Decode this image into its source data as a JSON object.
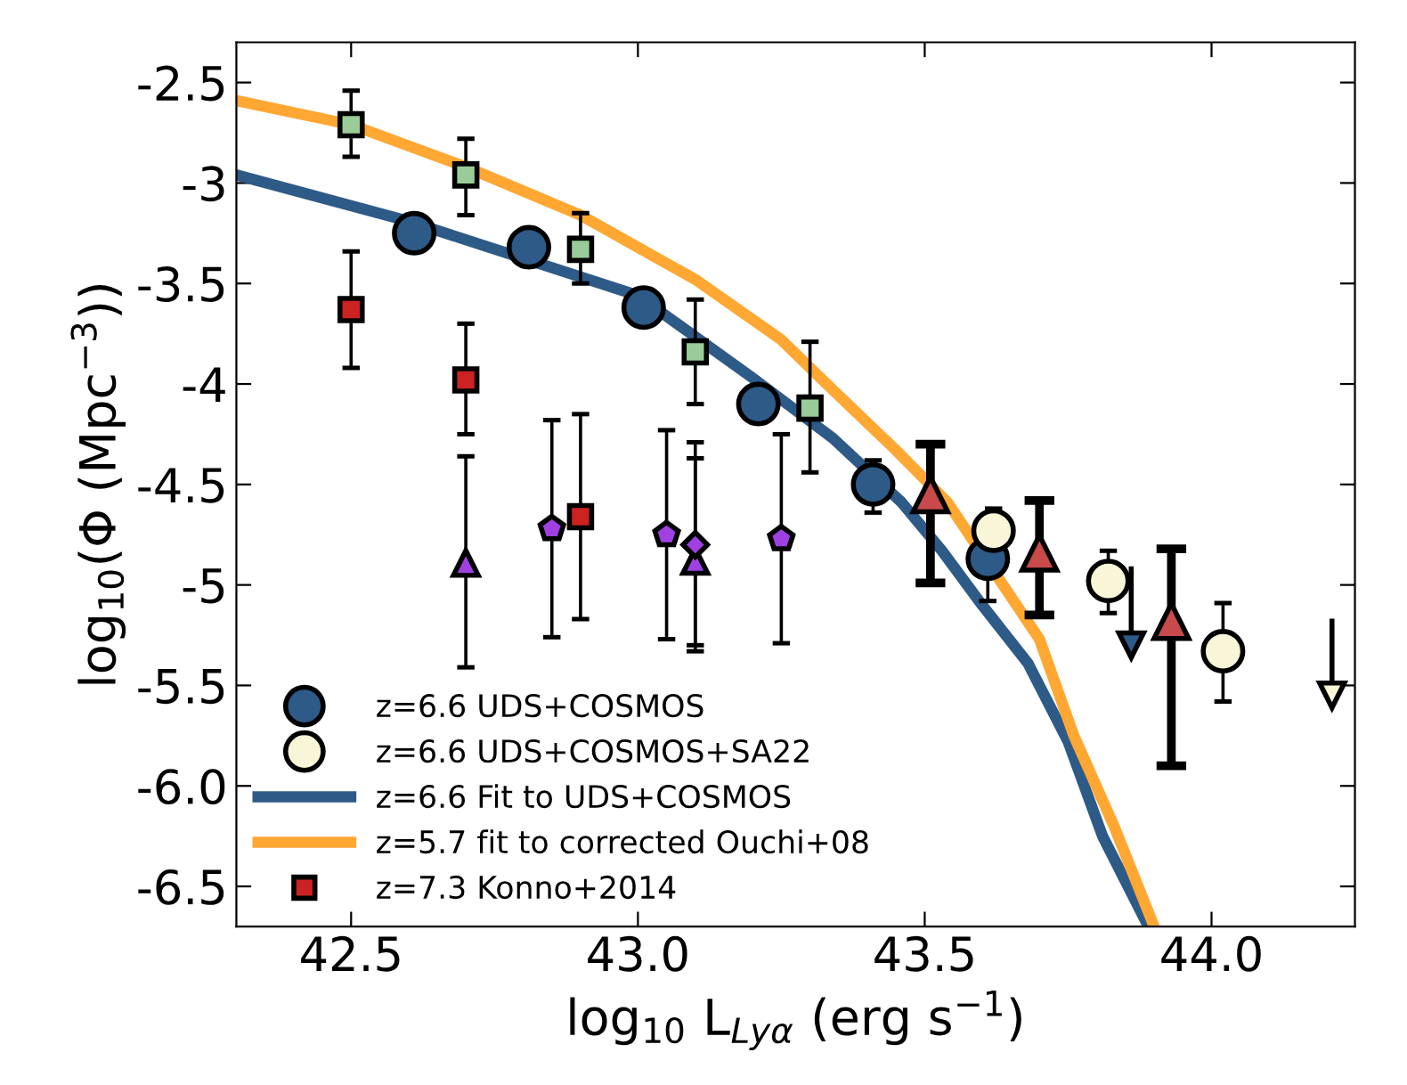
{
  "chart_data": {
    "type": "scatter",
    "xlabel": "log$_{10}$ L$_{Lyα}$ (erg s$^{−1}$)",
    "ylabel": "log$_{10}$(Φ (Mpc$^{−3}$))",
    "xlim": [
      42.3,
      44.25
    ],
    "xticks": [
      42.5,
      {
        "value": 43,
        "label": "43.0"
      },
      43.5,
      {
        "value": 44,
        "label": "44.0"
      }
    ],
    "ylim": [
      -6.7,
      -2.3
    ],
    "yticks": [
      -2.5,
      -3,
      -3.5,
      -4,
      -4.5,
      -5,
      -5.5,
      {
        "value": -6,
        "label": "-6.0"
      },
      -6.5
    ],
    "grid": false,
    "legend": "bottom left",
    "series": [
      {
        "name": "z=6.6 UDS+COSMOS",
        "marker": "circle",
        "color": "#2e5a87",
        "x": [
          42.61,
          42.81,
          43.01,
          43.21,
          43.41,
          43.61
        ],
        "values": [
          -3.25,
          -3.32,
          -3.62,
          -4.1,
          -4.5,
          -4.87
        ],
        "errors": [
          null,
          null,
          null,
          null,
          [
            -4.64,
            -4.38
          ],
          [
            -5.08,
            -4.87
          ]
        ]
      },
      {
        "name": "z=6.6 UDS+COSMOS+SA22",
        "marker": "circle",
        "color": "#f8f5d8",
        "x": [
          43.62,
          43.82,
          44.02
        ],
        "values": [
          -4.73,
          -4.98,
          -5.33
        ],
        "errors": [
          [
            -4.82,
            -4.62
          ],
          [
            -5.14,
            -4.83
          ],
          [
            -5.58,
            -5.09
          ]
        ]
      },
      {
        "name": "z=6.6 Fit to UDS+COSMOS",
        "type": "line",
        "color": "#2e5a87",
        "x": [
          42.3,
          42.6,
          43.0,
          43.2,
          43.34,
          43.46,
          43.53,
          43.6,
          43.68,
          43.75,
          43.81,
          43.89
        ],
        "values": [
          -2.96,
          -3.19,
          -3.56,
          -3.97,
          -4.27,
          -4.59,
          -4.83,
          -5.1,
          -5.39,
          -5.78,
          -6.25,
          -6.7
        ]
      },
      {
        "name": "z=5.7 fit to corrected Ouchi+08",
        "type": "line",
        "color": "#ffa733",
        "x": [
          42.3,
          42.5,
          42.7,
          42.9,
          43.1,
          43.25,
          43.34,
          43.45,
          43.54,
          43.66,
          43.7,
          43.76,
          43.83,
          43.9
        ],
        "values": [
          -2.59,
          -2.71,
          -2.92,
          -3.16,
          -3.48,
          -3.78,
          -4.03,
          -4.33,
          -4.59,
          -5.1,
          -5.27,
          -5.75,
          -6.2,
          -6.7
        ]
      },
      {
        "name": "z=7.3 Konno+2014",
        "marker": "square",
        "color": "#cc2222",
        "x": [
          42.5,
          42.7,
          42.9
        ],
        "values": [
          -3.63,
          -3.98,
          -4.66
        ],
        "errors": [
          [
            -3.92,
            -3.34
          ],
          [
            -4.25,
            -3.7
          ],
          [
            -5.17,
            -4.15
          ]
        ]
      },
      {
        "marker": "square",
        "color": "#99cc99",
        "x": [
          42.5,
          42.7,
          42.9,
          43.1,
          43.3
        ],
        "values": [
          -2.71,
          -2.96,
          -3.33,
          -3.84,
          -4.12
        ],
        "errors": [
          [
            -2.87,
            -2.54
          ],
          [
            -3.16,
            -2.78
          ],
          [
            -3.5,
            -3.15
          ],
          [
            -4.1,
            -3.58
          ],
          [
            -4.44,
            -3.79
          ]
        ]
      },
      {
        "marker": "triangle",
        "color": "#a040e0",
        "x": [
          42.7,
          43.1
        ],
        "values": [
          -4.89,
          -4.88
        ],
        "errors": [
          [
            -5.41,
            -4.36
          ],
          [
            -5.33,
            -4.29
          ]
        ]
      },
      {
        "color": "#a040e0",
        "x": [
          42.85,
          43.05,
          43.25
        ],
        "values": [
          -4.72,
          -4.75,
          -4.77
        ],
        "errors": [
          [
            -5.26,
            -4.18
          ],
          [
            -5.27,
            -4.23
          ],
          [
            -5.29,
            -4.25
          ]
        ]
      },
      {
        "marker": "diamond",
        "color": "#a040e0",
        "x": [
          43.1
        ],
        "values": [
          -4.8
        ],
        "errors": [
          [
            -5.3,
            -4.37
          ]
        ]
      },
      {
        "marker": "triangle",
        "color": "#c84a4a",
        "x": [
          43.51,
          43.7,
          43.93
        ],
        "values": [
          -4.55,
          -4.84,
          -5.18
        ],
        "errors": [
          [
            -4.99,
            -4.3
          ],
          [
            -5.15,
            -4.58
          ],
          [
            -5.9,
            -4.82
          ]
        ]
      },
      {
        "marker": "triangle",
        "color": "#2e5a87",
        "x": [
          43.86
        ],
        "values": [
          -5.3
        ],
        "errors": [
          [
            -5.3,
            -4.92
          ]
        ]
      },
      {
        "marker": "triangle",
        "color": "#f8f5d8",
        "x": [
          44.21
        ],
        "values": [
          -5.55
        ],
        "errors": [
          [
            -5.55,
            -5.18
          ]
        ]
      }
    ]
  }
}
